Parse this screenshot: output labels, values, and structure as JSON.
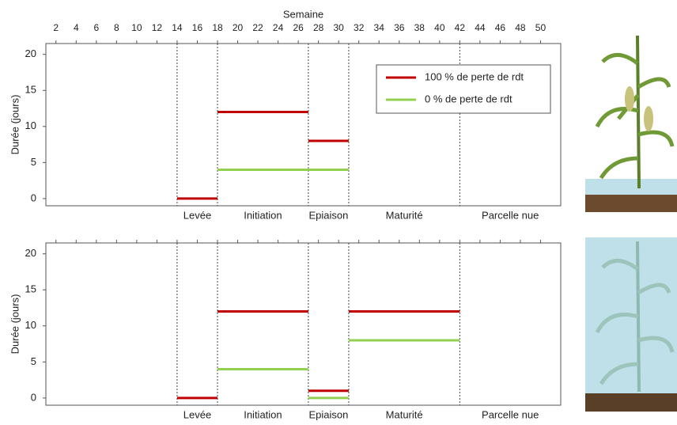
{
  "chart_data": [
    {
      "type": "segment",
      "xlabel": "Semaine",
      "ylabel": "Durée (jours)",
      "xlim": [
        1,
        52
      ],
      "xticks": [
        2,
        4,
        6,
        8,
        10,
        12,
        14,
        16,
        18,
        20,
        22,
        24,
        26,
        28,
        30,
        32,
        34,
        36,
        38,
        40,
        42,
        44,
        46,
        48,
        50
      ],
      "ylim": [
        -1,
        21.5
      ],
      "yticks": [
        0,
        5,
        10,
        15,
        20
      ],
      "phases": [
        {
          "label": "Levée",
          "start": 14,
          "end": 18
        },
        {
          "label": "Initiation",
          "start": 18,
          "end": 27
        },
        {
          "label": "Epiaison",
          "start": 27,
          "end": 31
        },
        {
          "label": "Maturité",
          "start": 31,
          "end": 42
        },
        {
          "label": "Parcelle nue",
          "start": 42,
          "end": 52
        }
      ],
      "legend": "top-right",
      "series": [
        {
          "name": "100 % de perte de rdt",
          "color": "#c00000",
          "starts": [
            14,
            18,
            27
          ],
          "ends": [
            18,
            27,
            31
          ],
          "values": [
            0,
            12,
            8
          ]
        },
        {
          "name": "0 % de perte de rdt",
          "color": "#92d050",
          "starts": [
            18
          ],
          "ends": [
            31
          ],
          "values": [
            4
          ]
        }
      ]
    },
    {
      "type": "segment",
      "ylabel": "Durée (jours)",
      "xlim": [
        1,
        52
      ],
      "ylim": [
        -1,
        21.5
      ],
      "yticks": [
        0,
        5,
        10,
        15,
        20
      ],
      "phases": [
        {
          "label": "Levée",
          "start": 14,
          "end": 18
        },
        {
          "label": "Initiation",
          "start": 18,
          "end": 27
        },
        {
          "label": "Epiaison",
          "start": 27,
          "end": 31
        },
        {
          "label": "Maturité",
          "start": 31,
          "end": 42
        },
        {
          "label": "Parcelle nue",
          "start": 42,
          "end": 52
        }
      ],
      "series": [
        {
          "color": "#c00000",
          "starts": [
            14,
            18,
            27,
            31
          ],
          "ends": [
            18,
            27,
            31,
            42
          ],
          "values": [
            0,
            12,
            1,
            12
          ]
        },
        {
          "color": "#92d050",
          "starts": [
            18,
            27,
            31
          ],
          "ends": [
            27,
            31,
            42
          ],
          "values": [
            4,
            0,
            8
          ]
        }
      ]
    }
  ]
}
